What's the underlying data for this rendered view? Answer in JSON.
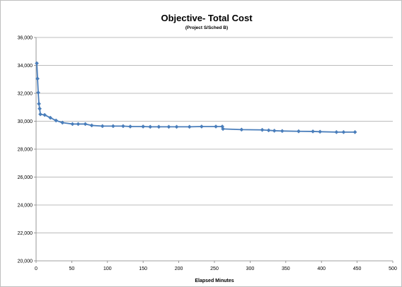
{
  "chart_data": {
    "type": "line",
    "title": "Objective- Total Cost",
    "subtitle": "(Project S/Sched B)",
    "xlabel": "Elapsed Minutes",
    "ylabel": "",
    "xlim": [
      0,
      500
    ],
    "ylim": [
      20000,
      36000
    ],
    "xticks": [
      0,
      50,
      100,
      150,
      200,
      250,
      300,
      350,
      400,
      450,
      500
    ],
    "yticks": [
      20000,
      22000,
      24000,
      26000,
      28000,
      30000,
      32000,
      34000,
      36000
    ],
    "xtick_labels": [
      "0",
      "50",
      "100",
      "150",
      "200",
      "250",
      "300",
      "350",
      "400",
      "450",
      "500"
    ],
    "ytick_labels": [
      "20,000",
      "22,000",
      "24,000",
      "26,000",
      "28,000",
      "30,000",
      "32,000",
      "34,000",
      "36,000"
    ],
    "grid": "horizontal",
    "legend": "none",
    "colors": {
      "line": "#4a7ebb",
      "marker": "#4a7ebb",
      "grid": "#a6a6a6",
      "axis": "#808080"
    },
    "series": [
      {
        "points": [
          [
            1,
            34150
          ],
          [
            2,
            33050
          ],
          [
            3,
            32050
          ],
          [
            4,
            31250
          ],
          [
            5,
            30900
          ],
          [
            6,
            30500
          ],
          [
            12,
            30450
          ],
          [
            20,
            30250
          ],
          [
            28,
            30050
          ],
          [
            37,
            29900
          ],
          [
            51,
            29800
          ],
          [
            59,
            29800
          ],
          [
            69,
            29800
          ],
          [
            78,
            29700
          ],
          [
            93,
            29650
          ],
          [
            108,
            29650
          ],
          [
            122,
            29650
          ],
          [
            132,
            29620
          ],
          [
            150,
            29620
          ],
          [
            160,
            29600
          ],
          [
            172,
            29600
          ],
          [
            186,
            29600
          ],
          [
            197,
            29600
          ],
          [
            215,
            29600
          ],
          [
            232,
            29620
          ],
          [
            252,
            29620
          ],
          [
            261,
            29620
          ],
          [
            262,
            29450
          ],
          [
            288,
            29400
          ],
          [
            317,
            29380
          ],
          [
            326,
            29350
          ],
          [
            334,
            29320
          ],
          [
            345,
            29300
          ],
          [
            368,
            29280
          ],
          [
            388,
            29270
          ],
          [
            398,
            29250
          ],
          [
            421,
            29220
          ],
          [
            431,
            29220
          ],
          [
            447,
            29220
          ]
        ]
      }
    ]
  }
}
